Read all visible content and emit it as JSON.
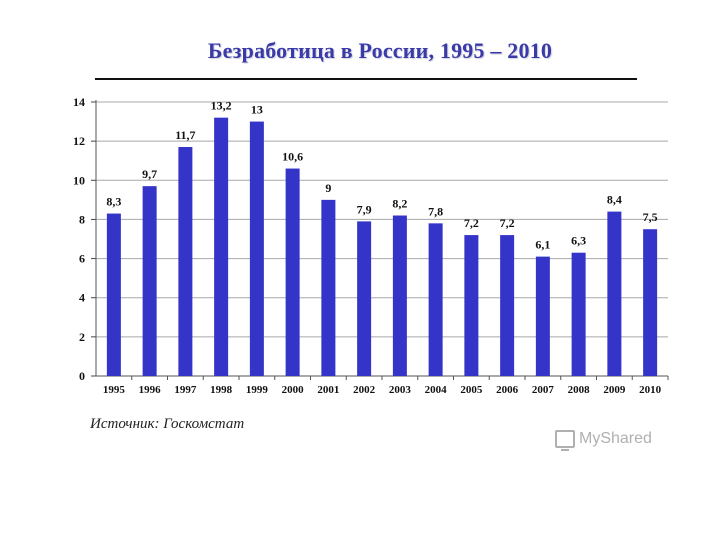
{
  "chart_data": {
    "type": "bar",
    "title": "Безработица в России, 1995 – 2010",
    "categories": [
      "1995",
      "1996",
      "1997",
      "1998",
      "1999",
      "2000",
      "2001",
      "2002",
      "2003",
      "2004",
      "2005",
      "2006",
      "2007",
      "2008",
      "2009",
      "2010"
    ],
    "values": [
      8.3,
      9.7,
      11.7,
      13.2,
      13,
      10.6,
      9,
      7.9,
      8.2,
      7.8,
      7.2,
      7.2,
      6.1,
      6.3,
      8.4,
      7.5
    ],
    "value_labels": [
      "8,3",
      "9,7",
      "11,7",
      "13,2",
      "13",
      "10,6",
      "9",
      "7,9",
      "8,2",
      "7,8",
      "7,2",
      "7,2",
      "6,1",
      "6,3",
      "8,4",
      "7,5"
    ],
    "y_ticks": [
      "0",
      "2",
      "4",
      "6",
      "8",
      "10",
      "12",
      "14"
    ],
    "ylim": [
      0,
      14
    ],
    "xlabel": "",
    "ylabel": "",
    "grid": true,
    "legend": "none",
    "bar_color": "#3434c8"
  },
  "source": "Источник: Госкомстат",
  "watermark": "MyShared"
}
